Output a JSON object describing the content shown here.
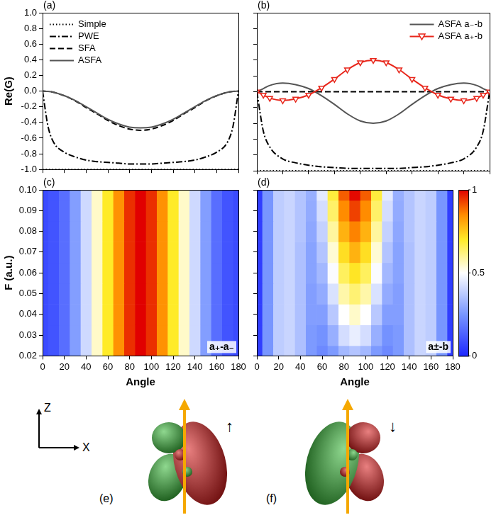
{
  "chart_data": [
    {
      "type": "line",
      "title": "(a)",
      "ylabel": "Re(G)",
      "x": [
        0,
        5,
        10,
        20,
        30,
        40,
        50,
        60,
        70,
        80,
        90,
        100,
        110,
        120,
        130,
        140,
        150,
        160,
        170,
        175,
        180
      ],
      "xlim": [
        0,
        180
      ],
      "xticks": [
        0,
        20,
        40,
        60,
        80,
        100,
        120,
        140,
        160,
        180
      ],
      "ylim": [
        -1,
        1
      ],
      "yticks": [
        {
          "value": -1,
          "label": "-1.0"
        },
        -0.8,
        -0.6,
        -0.4,
        -0.2,
        {
          "value": 0,
          "label": "0.0"
        },
        0.2,
        0.4,
        0.6,
        0.8,
        {
          "value": 1,
          "label": "1.0"
        }
      ],
      "tick_labels": "y",
      "grid": false,
      "legend": "upper left",
      "series": [
        {
          "name": "Simple",
          "color": "#000000",
          "line_style": "dotted",
          "values": [
            -1,
            -1,
            -1,
            -1,
            -1,
            -1,
            -1,
            -1,
            -1,
            -1,
            -1,
            -1,
            -1,
            -1,
            -1,
            -1,
            -1,
            -1,
            -1,
            -1,
            -1
          ]
        },
        {
          "name": "PWE",
          "color": "#000000",
          "line_style": "dashdot",
          "values": [
            0,
            -0.45,
            -0.65,
            -0.78,
            -0.84,
            -0.88,
            -0.9,
            -0.91,
            -0.92,
            -0.93,
            -0.93,
            -0.93,
            -0.92,
            -0.91,
            -0.9,
            -0.88,
            -0.84,
            -0.78,
            -0.65,
            -0.45,
            0
          ]
        },
        {
          "name": "SFA",
          "color": "#000000",
          "line_style": "dashed",
          "values": [
            0,
            -0.004,
            -0.015,
            -0.06,
            -0.125,
            -0.21,
            -0.29,
            -0.375,
            -0.44,
            -0.485,
            -0.5,
            -0.485,
            -0.44,
            -0.375,
            -0.29,
            -0.21,
            -0.125,
            -0.06,
            -0.015,
            -0.004,
            0
          ]
        },
        {
          "name": "ASFA",
          "color": "#555555",
          "line_style": "solid",
          "values": [
            0,
            -0.004,
            -0.015,
            -0.058,
            -0.12,
            -0.2,
            -0.28,
            -0.36,
            -0.42,
            -0.46,
            -0.47,
            -0.46,
            -0.42,
            -0.36,
            -0.28,
            -0.2,
            -0.12,
            -0.058,
            -0.015,
            -0.004,
            0
          ]
        }
      ]
    },
    {
      "type": "line",
      "title": "(b)",
      "x": [
        0,
        5,
        10,
        20,
        30,
        40,
        50,
        60,
        70,
        80,
        90,
        100,
        110,
        120,
        130,
        140,
        150,
        160,
        170,
        175,
        180
      ],
      "xlim": [
        0,
        180
      ],
      "xticks": [
        0,
        20,
        40,
        60,
        80,
        100,
        120,
        140,
        160,
        180
      ],
      "ylim": [
        -1,
        1
      ],
      "yticks": [
        {
          "value": -1,
          "label": "-1.0"
        },
        -0.8,
        -0.6,
        -0.4,
        -0.2,
        {
          "value": 0,
          "label": "0.0"
        },
        0.2,
        0.4,
        0.6,
        0.8,
        {
          "value": 1,
          "label": "1.0"
        }
      ],
      "tick_labels": false,
      "grid": false,
      "legend": "upper right",
      "series": [
        {
          "color": "#000000",
          "line_style": "dotted",
          "values": [
            -1,
            -1,
            -1,
            -1,
            -1,
            -1,
            -1,
            -1,
            -1,
            -1,
            -1,
            -1,
            -1,
            -1,
            -1,
            -1,
            -1,
            -1,
            -1,
            -1,
            -1
          ]
        },
        {
          "color": "#000000",
          "line_style": "dashdot",
          "values": [
            0,
            -0.5,
            -0.7,
            -0.85,
            -0.9,
            -0.93,
            -0.95,
            -0.96,
            -0.97,
            -0.97,
            -0.97,
            -0.97,
            -0.97,
            -0.96,
            -0.95,
            -0.93,
            -0.9,
            -0.85,
            -0.7,
            -0.5,
            0
          ]
        },
        {
          "color": "#000000",
          "line_style": "dashed",
          "values": [
            0,
            0,
            0,
            0,
            0,
            0,
            0,
            0,
            0,
            0,
            0,
            0,
            0,
            0,
            0,
            0,
            0,
            0,
            0,
            0,
            0
          ]
        },
        {
          "name": "ASFA a₋-b",
          "color": "#555555",
          "line_style": "solid",
          "values": [
            0,
            0.04,
            0.08,
            0.11,
            0.09,
            0.04,
            -0.05,
            -0.16,
            -0.28,
            -0.37,
            -0.4,
            -0.37,
            -0.28,
            -0.16,
            -0.05,
            0.04,
            0.09,
            0.11,
            0.08,
            0.04,
            0
          ]
        },
        {
          "name": "ASFA a₊-b",
          "color": "#e8261b",
          "line_style": "solid",
          "marker": "triangle_down",
          "values": [
            0,
            -0.04,
            -0.08,
            -0.11,
            -0.09,
            -0.04,
            0.05,
            0.16,
            0.28,
            0.37,
            0.4,
            0.37,
            0.28,
            0.16,
            0.05,
            -0.04,
            -0.09,
            -0.11,
            -0.08,
            -0.04,
            0
          ]
        }
      ]
    },
    {
      "type": "heatmap",
      "title": "(c)",
      "xlabel": "Angle",
      "ylabel": "F (a.u.)",
      "annotations": [
        "a₊-a₋"
      ],
      "xlim": [
        0,
        180
      ],
      "xticks": [
        0,
        20,
        40,
        60,
        80,
        100,
        120,
        140,
        160,
        180
      ],
      "ylim": [
        0.02,
        0.1
      ],
      "yticks": [
        0.02,
        0.03,
        0.04,
        0.05,
        0.06,
        0.07,
        0.08,
        0.09,
        {
          "value": 0.1,
          "label": "0.10"
        }
      ],
      "tick_labels": true,
      "grid": false,
      "x": [
        0,
        10,
        20,
        30,
        40,
        50,
        60,
        70,
        80,
        90,
        100,
        110,
        120,
        130,
        140,
        150,
        160,
        170,
        180
      ],
      "y": [
        0.02,
        0.03,
        0.04,
        0.05,
        0.06,
        0.07,
        0.08,
        0.09,
        0.1
      ],
      "cells": [
        [
          0.08,
          0.1,
          0.16,
          0.27,
          0.41,
          0.55,
          0.7,
          0.84,
          0.95,
          1.0,
          0.95,
          0.84,
          0.7,
          0.55,
          0.41,
          0.27,
          0.16,
          0.1,
          0.08
        ],
        [
          0.08,
          0.1,
          0.16,
          0.27,
          0.41,
          0.55,
          0.7,
          0.84,
          0.95,
          1.0,
          0.95,
          0.84,
          0.7,
          0.55,
          0.41,
          0.27,
          0.16,
          0.1,
          0.08
        ],
        [
          0.08,
          0.1,
          0.16,
          0.27,
          0.41,
          0.55,
          0.7,
          0.84,
          0.95,
          1.0,
          0.95,
          0.84,
          0.7,
          0.55,
          0.41,
          0.27,
          0.16,
          0.1,
          0.08
        ],
        [
          0.08,
          0.1,
          0.16,
          0.27,
          0.41,
          0.55,
          0.7,
          0.84,
          0.95,
          1.0,
          0.95,
          0.84,
          0.7,
          0.55,
          0.41,
          0.27,
          0.16,
          0.1,
          0.08
        ],
        [
          0.08,
          0.1,
          0.16,
          0.27,
          0.41,
          0.55,
          0.7,
          0.84,
          0.95,
          1.0,
          0.95,
          0.84,
          0.7,
          0.55,
          0.41,
          0.27,
          0.16,
          0.1,
          0.08
        ],
        [
          0.08,
          0.1,
          0.16,
          0.27,
          0.41,
          0.55,
          0.7,
          0.84,
          0.95,
          1.0,
          0.95,
          0.84,
          0.7,
          0.55,
          0.41,
          0.27,
          0.16,
          0.1,
          0.08
        ],
        [
          0.08,
          0.1,
          0.16,
          0.27,
          0.41,
          0.55,
          0.7,
          0.84,
          0.95,
          1.0,
          0.95,
          0.84,
          0.7,
          0.55,
          0.41,
          0.27,
          0.16,
          0.1,
          0.08
        ],
        [
          0.08,
          0.1,
          0.16,
          0.27,
          0.41,
          0.55,
          0.7,
          0.84,
          0.95,
          1.0,
          0.95,
          0.84,
          0.7,
          0.55,
          0.41,
          0.27,
          0.16,
          0.1,
          0.08
        ],
        [
          0.08,
          0.1,
          0.16,
          0.27,
          0.41,
          0.55,
          0.7,
          0.84,
          0.95,
          1.0,
          0.95,
          0.84,
          0.7,
          0.55,
          0.41,
          0.27,
          0.16,
          0.1,
          0.08
        ]
      ]
    },
    {
      "type": "heatmap",
      "title": "(d)",
      "xlabel": "Angle",
      "annotations": [
        "a±-b"
      ],
      "xlim": [
        0,
        180
      ],
      "xticks": [
        0,
        20,
        40,
        60,
        80,
        100,
        120,
        140,
        160,
        180
      ],
      "ylim": [
        0.02,
        0.1
      ],
      "yticks": [
        0.02,
        0.03,
        0.04,
        0.05,
        0.06,
        0.07,
        0.08,
        0.09,
        {
          "value": 0.1,
          "label": "0.10"
        }
      ],
      "tick_labels": "x",
      "grid": false,
      "x": [
        0,
        10,
        20,
        30,
        40,
        50,
        60,
        70,
        80,
        90,
        100,
        110,
        120,
        130,
        140,
        150,
        160,
        170,
        180
      ],
      "y": [
        0.02,
        0.03,
        0.04,
        0.05,
        0.06,
        0.07,
        0.08,
        0.09,
        0.1
      ],
      "cells": [
        [
          0.05,
          0.25,
          0.38,
          0.4,
          0.35,
          0.26,
          0.22,
          0.26,
          0.33,
          0.36,
          0.33,
          0.26,
          0.22,
          0.26,
          0.35,
          0.4,
          0.38,
          0.25,
          0.05
        ],
        [
          0.05,
          0.25,
          0.38,
          0.4,
          0.35,
          0.26,
          0.24,
          0.31,
          0.42,
          0.46,
          0.42,
          0.31,
          0.24,
          0.26,
          0.35,
          0.4,
          0.38,
          0.25,
          0.05
        ],
        [
          0.05,
          0.25,
          0.38,
          0.4,
          0.35,
          0.27,
          0.27,
          0.37,
          0.5,
          0.55,
          0.5,
          0.37,
          0.27,
          0.27,
          0.35,
          0.4,
          0.38,
          0.25,
          0.05
        ],
        [
          0.05,
          0.25,
          0.38,
          0.4,
          0.35,
          0.27,
          0.3,
          0.43,
          0.58,
          0.63,
          0.58,
          0.43,
          0.3,
          0.27,
          0.35,
          0.4,
          0.38,
          0.25,
          0.05
        ],
        [
          0.05,
          0.25,
          0.38,
          0.4,
          0.35,
          0.28,
          0.33,
          0.49,
          0.65,
          0.71,
          0.65,
          0.49,
          0.33,
          0.28,
          0.35,
          0.4,
          0.38,
          0.25,
          0.05
        ],
        [
          0.05,
          0.25,
          0.38,
          0.4,
          0.35,
          0.28,
          0.36,
          0.54,
          0.72,
          0.79,
          0.72,
          0.54,
          0.36,
          0.28,
          0.35,
          0.4,
          0.38,
          0.25,
          0.05
        ],
        [
          0.05,
          0.25,
          0.38,
          0.4,
          0.36,
          0.29,
          0.39,
          0.59,
          0.79,
          0.86,
          0.79,
          0.59,
          0.39,
          0.29,
          0.36,
          0.4,
          0.38,
          0.25,
          0.05
        ],
        [
          0.05,
          0.25,
          0.38,
          0.4,
          0.36,
          0.3,
          0.42,
          0.64,
          0.85,
          0.93,
          0.85,
          0.64,
          0.42,
          0.3,
          0.36,
          0.4,
          0.38,
          0.25,
          0.05
        ],
        [
          0.05,
          0.25,
          0.38,
          0.4,
          0.36,
          0.31,
          0.45,
          0.68,
          0.9,
          0.99,
          0.9,
          0.68,
          0.45,
          0.31,
          0.36,
          0.4,
          0.38,
          0.25,
          0.05
        ]
      ],
      "colorbar": {
        "range": [
          0,
          1
        ],
        "ticks": [
          0,
          0.5,
          1
        ]
      }
    }
  ],
  "diagram": {
    "axes": {
      "vertical": "Z",
      "horizontal": "X"
    },
    "panels": [
      {
        "label": "(e)",
        "spin": "↑"
      },
      {
        "label": "(f)",
        "spin": "↓"
      }
    ]
  }
}
